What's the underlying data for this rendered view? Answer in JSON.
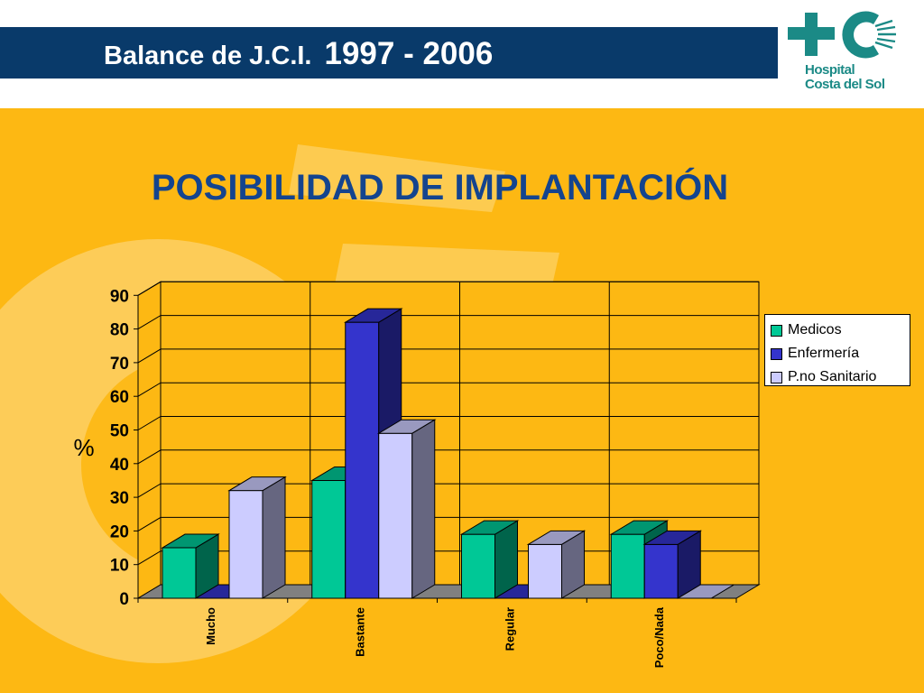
{
  "header": {
    "title_part1": "Balance  de J.C.I.",
    "title_part2": "1997 - 2006",
    "logo_line1": "Hospital",
    "logo_line2": "Costa del Sol",
    "logo_icon": "hospital-cross-sun-logo"
  },
  "colors": {
    "header_bg": "#093a6a",
    "slide_bg": "#fdb813",
    "title_text": "#14448e",
    "logo": "#1b8a86"
  },
  "chart_data": {
    "type": "bar",
    "title": "POSIBILIDAD DE IMPLANTACIÓN",
    "ylabel": "%",
    "xlabel": "",
    "ylim": [
      0,
      90
    ],
    "yticks": [
      "0",
      "10",
      "20",
      "30",
      "40",
      "50",
      "60",
      "70",
      "80",
      "90"
    ],
    "categories": [
      "Mucho",
      "Bastante",
      "Regular",
      "Poco/Nada"
    ],
    "series": [
      {
        "name": "Medicos",
        "color": "#00c896",
        "values": [
          15,
          35,
          19,
          19
        ]
      },
      {
        "name": "Enfermería",
        "color": "#3434cc",
        "values": [
          0,
          82,
          0,
          16
        ]
      },
      {
        "name": "P.no Sanitario",
        "color": "#ccccff",
        "values": [
          32,
          49,
          16,
          0
        ]
      }
    ],
    "legend_position": "right",
    "grid": true
  }
}
